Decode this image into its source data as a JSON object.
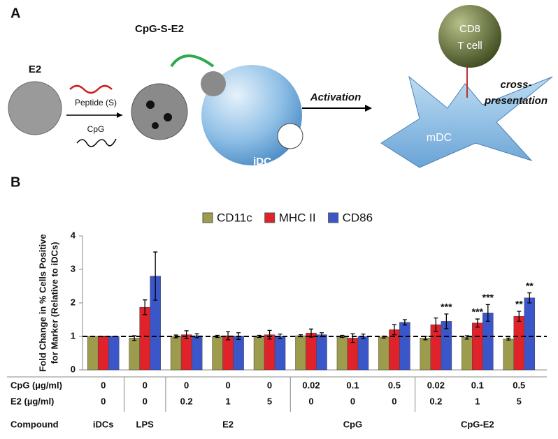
{
  "diagram": {
    "panel_a": "A",
    "e2": "E2",
    "peptide": "Peptide (S)",
    "cpg": "CpG",
    "conjugate": "CpG-S-E2",
    "idc": "iDC",
    "activation": "Activation",
    "mdc": "mDC",
    "cd8": "CD8",
    "tcell": "T cell",
    "cross": "cross-",
    "presentation": "presentation",
    "panel_b": "B"
  },
  "chart_data": {
    "type": "bar",
    "ylabel": [
      "Fold Change in % Cells Positive",
      "for Marker (Relative to iDCs)"
    ],
    "ylim": [
      0,
      4
    ],
    "yticks": [
      0,
      1,
      2,
      3,
      4
    ],
    "reference_line": 1,
    "row_labels": {
      "cpg": "CpG (µg/ml)",
      "e2": "E2 (µg/ml)",
      "compound": "Compound"
    },
    "cpg": [
      0,
      0,
      0,
      0,
      0,
      0.02,
      0.1,
      0.5,
      0.02,
      0.1,
      0.5
    ],
    "e2": [
      0,
      0,
      0.2,
      1,
      5,
      0,
      0,
      0,
      0.2,
      1,
      5
    ],
    "compounds": [
      "iDCs",
      "LPS",
      "E2",
      "E2",
      "E2",
      "CpG",
      "CpG",
      "CpG",
      "CpG-E2",
      "CpG-E2",
      "CpG-E2"
    ],
    "series": [
      {
        "name": "CD11c",
        "color": "#9d9b4c",
        "values": [
          1,
          0.95,
          1,
          1,
          1,
          1.02,
          1,
          0.98,
          0.95,
          0.97,
          0.92
        ],
        "errors": [
          0,
          0.07,
          0.04,
          0.03,
          0.03,
          0.03,
          0.03,
          0.03,
          0.05,
          0.05,
          0.03
        ],
        "significance": [
          null,
          null,
          null,
          null,
          null,
          null,
          null,
          null,
          null,
          null,
          null
        ]
      },
      {
        "name": "MHC II",
        "color": "#e0232b",
        "values": [
          1,
          1.87,
          1.05,
          1.02,
          1.05,
          1.1,
          0.95,
          1.2,
          1.35,
          1.4,
          1.6
        ],
        "errors": [
          0,
          0.22,
          0.12,
          0.12,
          0.13,
          0.12,
          0.13,
          0.15,
          0.2,
          0.12,
          0.15
        ],
        "significance": [
          null,
          null,
          null,
          null,
          null,
          null,
          null,
          null,
          null,
          "***",
          "**"
        ]
      },
      {
        "name": "CD86",
        "color": "#3b56c9",
        "values": [
          1,
          2.8,
          1.02,
          1.01,
          1,
          1.05,
          1,
          1.42,
          1.45,
          1.7,
          2.15
        ],
        "errors": [
          0,
          0.72,
          0.06,
          0.1,
          0.07,
          0.06,
          0.07,
          0.08,
          0.22,
          0.25,
          0.15
        ],
        "significance": [
          null,
          null,
          null,
          null,
          null,
          null,
          null,
          null,
          "***",
          "***",
          "**"
        ]
      }
    ]
  }
}
